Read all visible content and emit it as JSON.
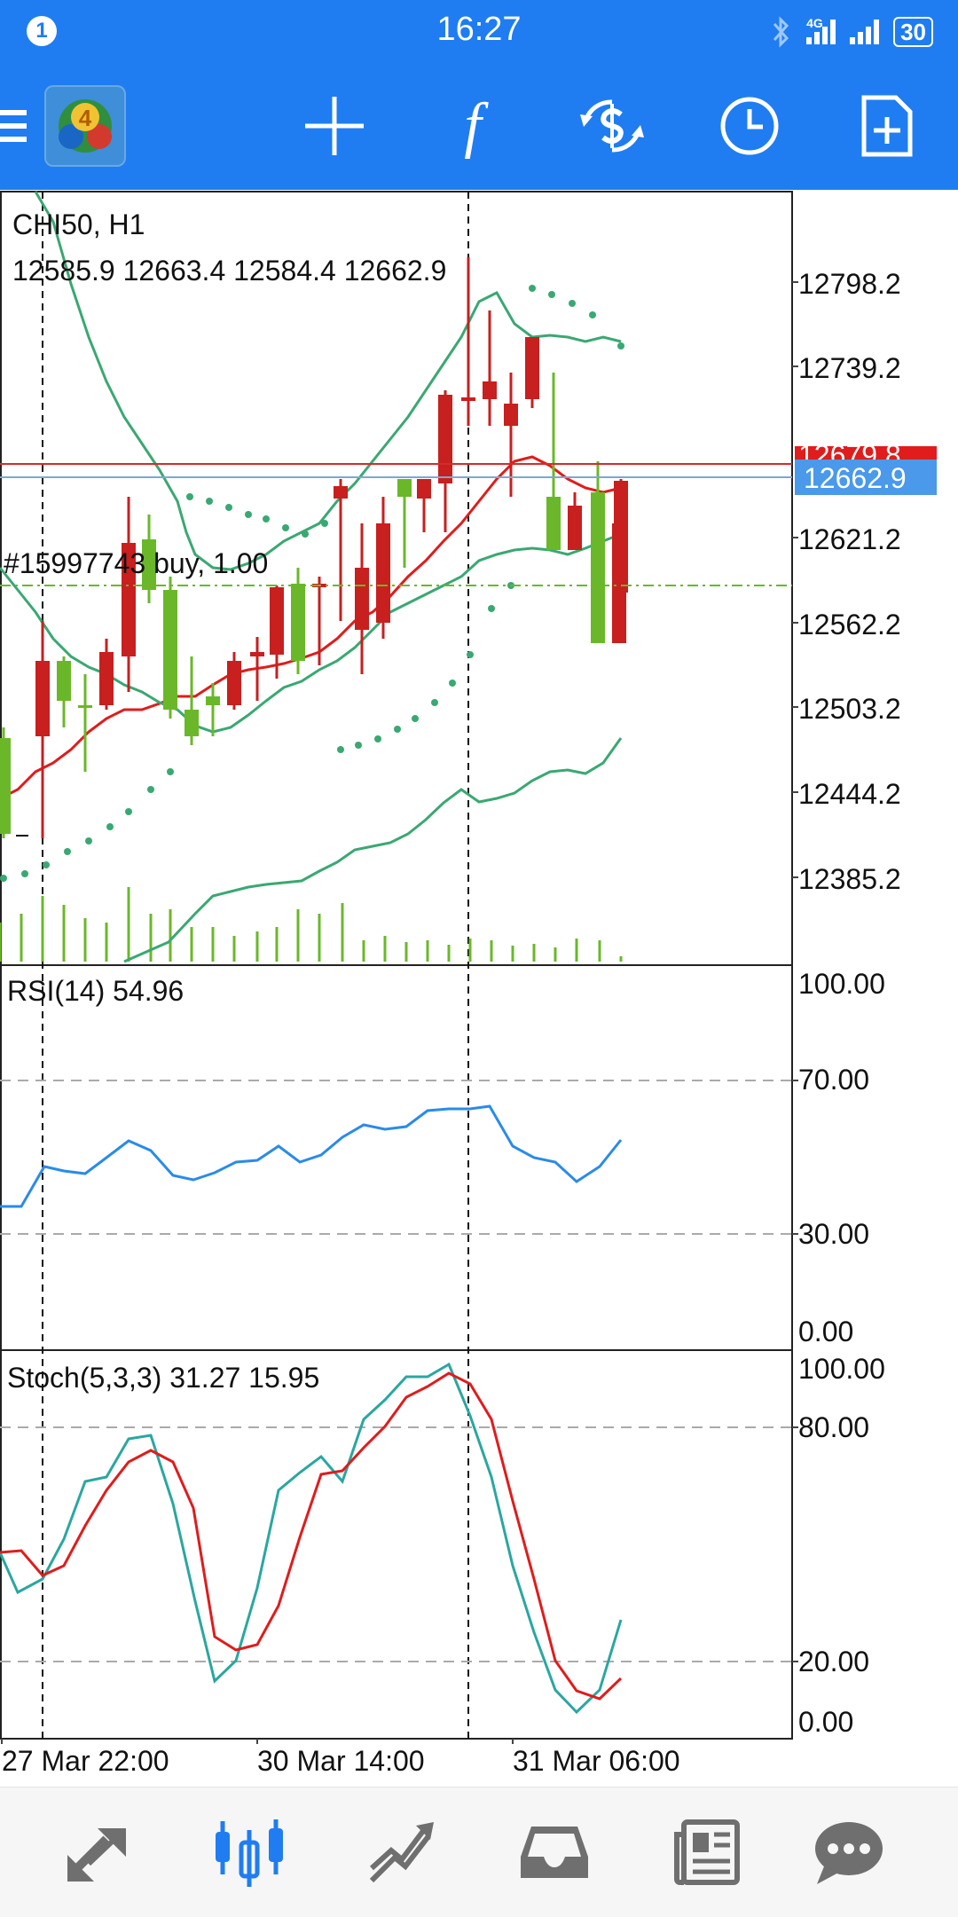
{
  "status_bar": {
    "notification_count": "1",
    "time": "16:27",
    "network_label": "4G",
    "battery": "30"
  },
  "toolbar": {
    "menu_icon": "hamburger-icon",
    "logo_icon": "metatrader-4-logo",
    "logo_digit": "4",
    "buttons": [
      "crosshair-icon",
      "function-icon",
      "trade-icon",
      "clock-icon",
      "new-document-icon"
    ],
    "function_glyph": "f"
  },
  "chart": {
    "symbol_line": "CHI50, H1",
    "ohlc": "12585.9 12663.4 12584.4 12662.9",
    "order_label": "#15997743 buy, 1.00",
    "price_axis": [
      "12798.2",
      "12739.2",
      "12621.2",
      "12562.2",
      "12503.2",
      "12444.2",
      "12385.2"
    ],
    "hidden_price_label": "12679.8",
    "current_price": "12662.9",
    "colors": {
      "bull_candle": "#6ab82a",
      "bear_candle": "#c81f1f",
      "bollinger": "#3aa872",
      "ma": "#e01c1c",
      "bid_line": "#7fa6d6",
      "ask_line": "#d62b2b",
      "price_tag": "#4a99ea"
    }
  },
  "rsi": {
    "label": "RSI(14) 54.96",
    "levels": [
      "100.00",
      "70.00",
      "30.00",
      "0.00"
    ]
  },
  "stoch": {
    "label": "Stoch(5,3,3) 31.27 15.95",
    "levels": [
      "100.00",
      "80.00",
      "20.00",
      "0.00"
    ]
  },
  "time_axis": [
    "27 Mar 22:00",
    "30 Mar 14:00",
    "31 Mar 06:00"
  ],
  "bottom_nav": [
    {
      "icon": "quotes-icon",
      "active": false
    },
    {
      "icon": "chart-icon",
      "active": true
    },
    {
      "icon": "trade-history-icon",
      "active": false
    },
    {
      "icon": "inbox-icon",
      "active": false
    },
    {
      "icon": "news-icon",
      "active": false
    },
    {
      "icon": "chat-icon",
      "active": false
    }
  ]
}
